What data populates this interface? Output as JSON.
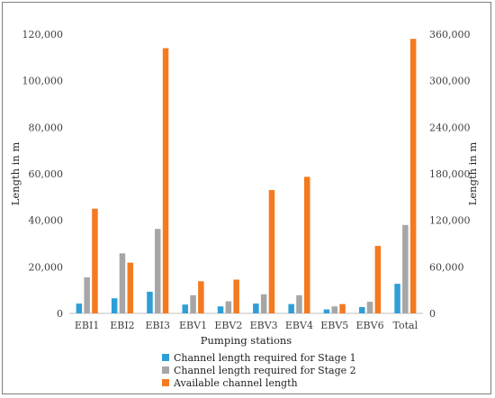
{
  "chart_data": {
    "type": "bar",
    "categories": [
      "EBI1",
      "EBI2",
      "EBI3",
      "EBV1",
      "EBV2",
      "EBV3",
      "EBV4",
      "EBV5",
      "EBV6",
      "Total"
    ],
    "series": [
      {
        "name": "Channel length required for Stage 1",
        "color": "#2e9fd6",
        "values": [
          4200,
          6500,
          9300,
          3800,
          3000,
          4200,
          4000,
          1700,
          2700,
          12700
        ]
      },
      {
        "name": "Channel length required for Stage 2",
        "color": "#a6a6a6",
        "values": [
          15500,
          25800,
          36300,
          7800,
          5200,
          8200,
          7800,
          3000,
          5000,
          38000
        ]
      },
      {
        "name": "Available channel length",
        "color": "#f47a20",
        "values": [
          45000,
          21800,
          114000,
          13800,
          14500,
          53000,
          58700,
          4000,
          29000,
          118000
        ]
      }
    ],
    "xlabel": "Pumping stations",
    "ylabel": "Length in m",
    "y2label": "Length in m",
    "ylim": [
      0,
      120000
    ],
    "y2lim": [
      0,
      360000
    ],
    "yticks": [
      "0",
      "20,000",
      "40,000",
      "60,000",
      "80,000",
      "100,000",
      "120,000"
    ],
    "y2ticks": [
      "0",
      "60,000",
      "120,000",
      "180,000",
      "240,000",
      "300,000",
      "360,000"
    ],
    "grid": false,
    "legend_position": "bottom"
  }
}
